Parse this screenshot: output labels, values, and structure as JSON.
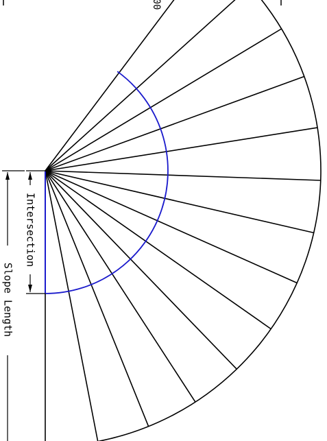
{
  "diagram": {
    "labels": {
      "intersection": "Intersection",
      "slope_length": "Slope Length",
      "top_partial": "00"
    },
    "rays": {
      "count": 13
    },
    "colors": {
      "line": "#000000",
      "arc": "#1a1acc",
      "background": "#ffffff"
    }
  }
}
